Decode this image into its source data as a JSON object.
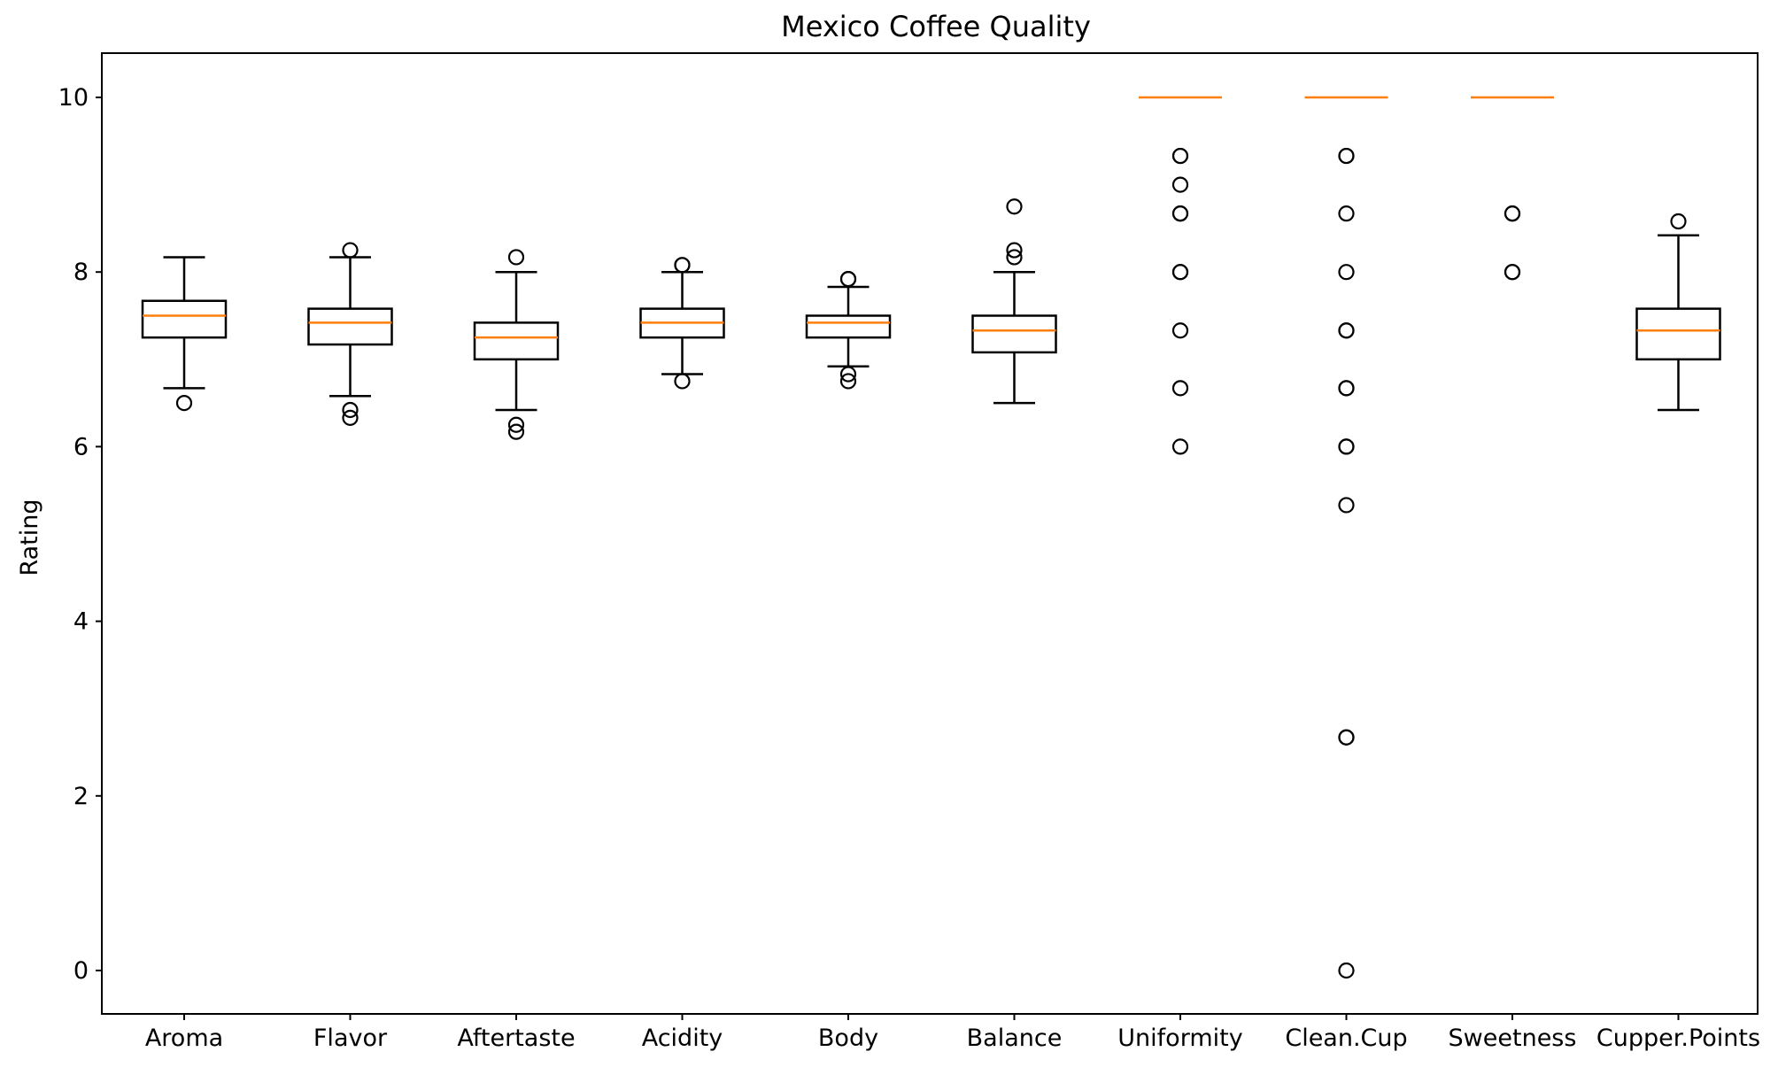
{
  "chart_data": {
    "type": "boxplot",
    "title": "Mexico Coffee Quality",
    "xlabel": "",
    "ylabel": "Rating",
    "ylim": [
      -0.5,
      10.5
    ],
    "yticks": [
      0,
      2,
      4,
      6,
      8,
      10
    ],
    "grid": false,
    "colors": {
      "box": "#000000",
      "median": "#ff7f0e",
      "outlier": "#000000"
    },
    "categories": [
      "Aroma",
      "Flavor",
      "Aftertaste",
      "Acidity",
      "Body",
      "Balance",
      "Uniformity",
      "Clean.Cup",
      "Sweetness",
      "Cupper.Points"
    ],
    "boxes": [
      {
        "name": "Aroma",
        "whisker_low": 6.67,
        "q1": 7.25,
        "median": 7.5,
        "q3": 7.67,
        "whisker_high": 8.17,
        "outliers": [
          6.5
        ]
      },
      {
        "name": "Flavor",
        "whisker_low": 6.58,
        "q1": 7.17,
        "median": 7.42,
        "q3": 7.58,
        "whisker_high": 8.17,
        "outliers": [
          8.25,
          6.42,
          6.33
        ]
      },
      {
        "name": "Aftertaste",
        "whisker_low": 6.42,
        "q1": 7.0,
        "median": 7.25,
        "q3": 7.42,
        "whisker_high": 8.0,
        "outliers": [
          8.17,
          6.25,
          6.17
        ]
      },
      {
        "name": "Acidity",
        "whisker_low": 6.83,
        "q1": 7.25,
        "median": 7.42,
        "q3": 7.58,
        "whisker_high": 8.0,
        "outliers": [
          8.08,
          8.08,
          6.75
        ]
      },
      {
        "name": "Body",
        "whisker_low": 6.92,
        "q1": 7.25,
        "median": 7.42,
        "q3": 7.5,
        "whisker_high": 7.83,
        "outliers": [
          7.92,
          7.92,
          6.83,
          6.75
        ]
      },
      {
        "name": "Balance",
        "whisker_low": 6.5,
        "q1": 7.08,
        "median": 7.33,
        "q3": 7.5,
        "whisker_high": 8.0,
        "outliers": [
          8.75,
          8.25,
          8.17
        ]
      },
      {
        "name": "Uniformity",
        "whisker_low": 10,
        "q1": 10,
        "median": 10,
        "q3": 10,
        "whisker_high": 10,
        "outliers": [
          9.33,
          9.33,
          9.0,
          8.67,
          8.67,
          8.0,
          8.0,
          7.33,
          6.67,
          6.0
        ]
      },
      {
        "name": "Clean.Cup",
        "whisker_low": 10,
        "q1": 10,
        "median": 10,
        "q3": 10,
        "whisker_high": 10,
        "outliers": [
          9.33,
          9.33,
          8.67,
          8.0,
          7.33,
          7.33,
          6.67,
          6.67,
          6.0,
          6.0,
          5.33,
          2.67,
          2.67,
          0.0
        ]
      },
      {
        "name": "Sweetness",
        "whisker_low": 10,
        "q1": 10,
        "median": 10,
        "q3": 10,
        "whisker_high": 10,
        "outliers": [
          8.67,
          8.67,
          8.0,
          8.0
        ]
      },
      {
        "name": "Cupper.Points",
        "whisker_low": 6.42,
        "q1": 7.0,
        "median": 7.33,
        "q3": 7.58,
        "whisker_high": 8.42,
        "outliers": [
          8.58
        ]
      }
    ]
  }
}
